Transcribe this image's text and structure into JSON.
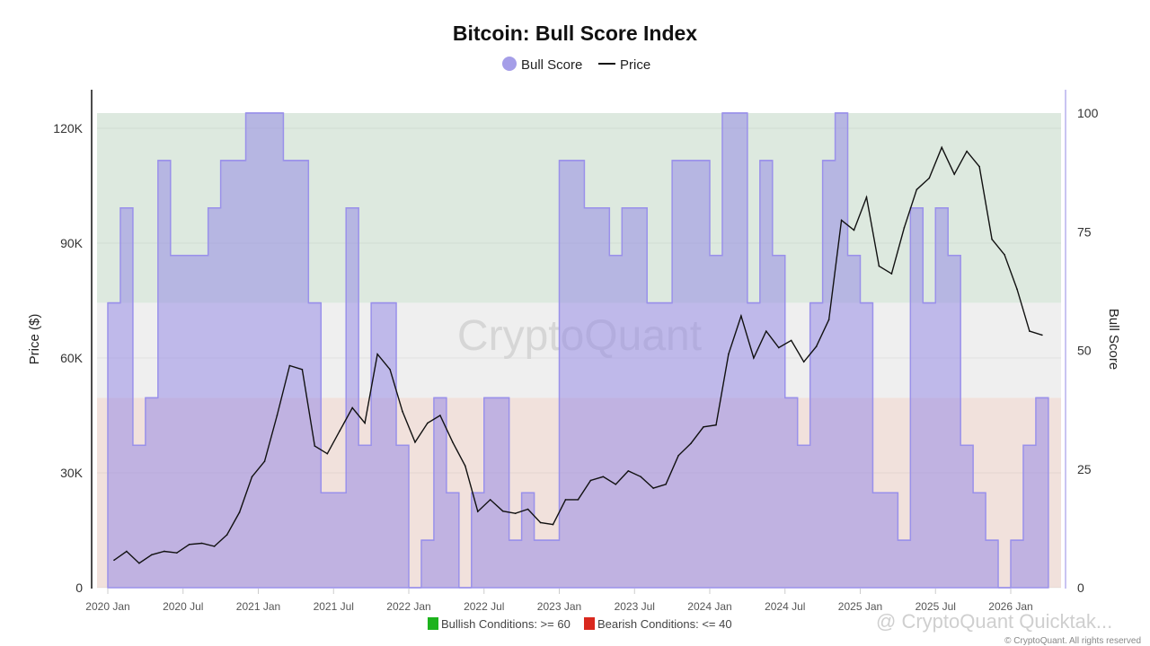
{
  "chart_data": {
    "type": "area",
    "title": "Bitcoin: Bull Score Index",
    "legend": [
      {
        "name": "Bull Score",
        "marker": "circle",
        "color": "#a59ee8"
      },
      {
        "name": "Price",
        "marker": "line",
        "color": "#111111"
      }
    ],
    "legend_placement": "top-center",
    "ylabel_left": "Price ($)",
    "ylabel_right": "Bull Score",
    "ylim_left": [
      0,
      125000
    ],
    "ylim_right": [
      0,
      100
    ],
    "yticks_left": [
      {
        "v": 0,
        "label": "0"
      },
      {
        "v": 30000,
        "label": "30K"
      },
      {
        "v": 60000,
        "label": "60K"
      },
      {
        "v": 90000,
        "label": "90K"
      },
      {
        "v": 120000,
        "label": "120K"
      }
    ],
    "yticks_right": [
      {
        "v": 0,
        "label": "0"
      },
      {
        "v": 25,
        "label": "25"
      },
      {
        "v": 50,
        "label": "50"
      },
      {
        "v": 75,
        "label": "75"
      },
      {
        "v": 100,
        "label": "100"
      }
    ],
    "xticks": [
      "2020 Jan",
      "2020 Jul",
      "2021 Jan",
      "2021 Jul",
      "2022 Jan",
      "2022 Jul",
      "2023 Jan",
      "2023 Jul",
      "2024 Jan",
      "2024 Jul",
      "2025 Jan",
      "2025 Jul",
      "2026 Jan"
    ],
    "bands": [
      {
        "from": 60,
        "to": 100,
        "color": "#dde9df"
      },
      {
        "from": 40,
        "to": 60,
        "color": "#efefef"
      },
      {
        "from": 0,
        "to": 40,
        "color": "#f1e1dc"
      }
    ],
    "band_legend": [
      {
        "label": "Bullish Conditions: >= 60",
        "color": "#1db31d"
      },
      {
        "label": "Bearish Conditions: <= 40",
        "color": "#d9281e"
      }
    ],
    "months": [
      "2020-01",
      "2020-02",
      "2020-03",
      "2020-04",
      "2020-05",
      "2020-06",
      "2020-07",
      "2020-08",
      "2020-09",
      "2020-10",
      "2020-11",
      "2020-12",
      "2021-01",
      "2021-02",
      "2021-03",
      "2021-04",
      "2021-05",
      "2021-06",
      "2021-07",
      "2021-08",
      "2021-09",
      "2021-10",
      "2021-11",
      "2021-12",
      "2022-01",
      "2022-02",
      "2022-03",
      "2022-04",
      "2022-05",
      "2022-06",
      "2022-07",
      "2022-08",
      "2022-09",
      "2022-10",
      "2022-11",
      "2022-12",
      "2023-01",
      "2023-02",
      "2023-03",
      "2023-04",
      "2023-05",
      "2023-06",
      "2023-07",
      "2023-08",
      "2023-09",
      "2023-10",
      "2023-11",
      "2023-12",
      "2024-01",
      "2024-02",
      "2024-03",
      "2024-04",
      "2024-05",
      "2024-06",
      "2024-07",
      "2024-08",
      "2024-09",
      "2024-10",
      "2024-11",
      "2024-12",
      "2025-01",
      "2025-02",
      "2025-03",
      "2025-04",
      "2025-05",
      "2025-06",
      "2025-07",
      "2025-08",
      "2025-09",
      "2025-10",
      "2025-11",
      "2025-12",
      "2026-01",
      "2026-02",
      "2026-03"
    ],
    "series": [
      {
        "name": "Bull Score",
        "axis": "right",
        "step": true,
        "values": [
          60,
          80,
          30,
          40,
          90,
          70,
          70,
          70,
          80,
          90,
          90,
          100,
          100,
          100,
          90,
          90,
          60,
          20,
          20,
          80,
          30,
          60,
          60,
          30,
          0,
          10,
          40,
          20,
          0,
          20,
          40,
          40,
          10,
          20,
          10,
          10,
          90,
          90,
          80,
          80,
          70,
          80,
          80,
          60,
          60,
          90,
          90,
          90,
          70,
          100,
          100,
          60,
          90,
          70,
          40,
          30,
          60,
          90,
          100,
          70,
          60,
          20,
          20,
          10,
          80,
          60,
          80,
          70,
          30,
          20,
          10,
          0,
          10,
          30,
          40
        ]
      },
      {
        "name": "Price",
        "axis": "left",
        "values": [
          7200,
          9500,
          6400,
          8600,
          9500,
          9100,
          11300,
          11600,
          10800,
          13800,
          19700,
          29000,
          33000,
          45000,
          58000,
          57000,
          37000,
          35000,
          41000,
          47000,
          43000,
          61000,
          57000,
          46000,
          38000,
          43000,
          45000,
          38000,
          31800,
          19900,
          23000,
          20000,
          19400,
          20500,
          17000,
          16500,
          23000,
          23000,
          28000,
          29000,
          27000,
          30500,
          29000,
          26000,
          27000,
          34500,
          37700,
          42000,
          42500,
          61000,
          71000,
          60000,
          67000,
          62700,
          64600,
          59000,
          63000,
          70000,
          96000,
          93400,
          102000,
          84000,
          82000,
          94000,
          104000,
          107000,
          115000,
          108000,
          114000,
          110000,
          91000,
          87000,
          78000,
          67000,
          66000
        ]
      }
    ]
  },
  "watermark": "CryptoQuant",
  "footer": {
    "brand": "@ CryptoQuant Quicktak...",
    "rights": "© CryptoQuant. All rights reserved"
  }
}
